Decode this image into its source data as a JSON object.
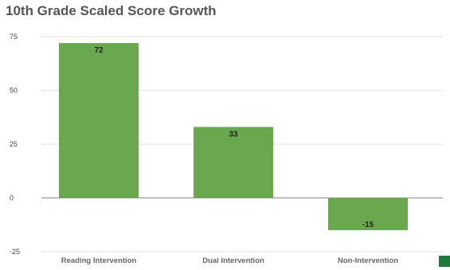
{
  "chart_data": {
    "type": "bar",
    "title": "10th Grade Scaled Score Growth",
    "categories": [
      "Reading Intervention",
      "Dual Intervention",
      "Non-Intervention"
    ],
    "values": [
      72,
      33,
      -15
    ],
    "data_labels": [
      "72",
      "33",
      "-15"
    ],
    "yticks": [
      75,
      50,
      25,
      0,
      -25
    ],
    "ylim": [
      -25,
      75
    ],
    "xlabel": "",
    "ylabel": "",
    "grid": true,
    "bar_color": "#6aa84f",
    "legend_swatch_color": "#1e7a3c"
  }
}
